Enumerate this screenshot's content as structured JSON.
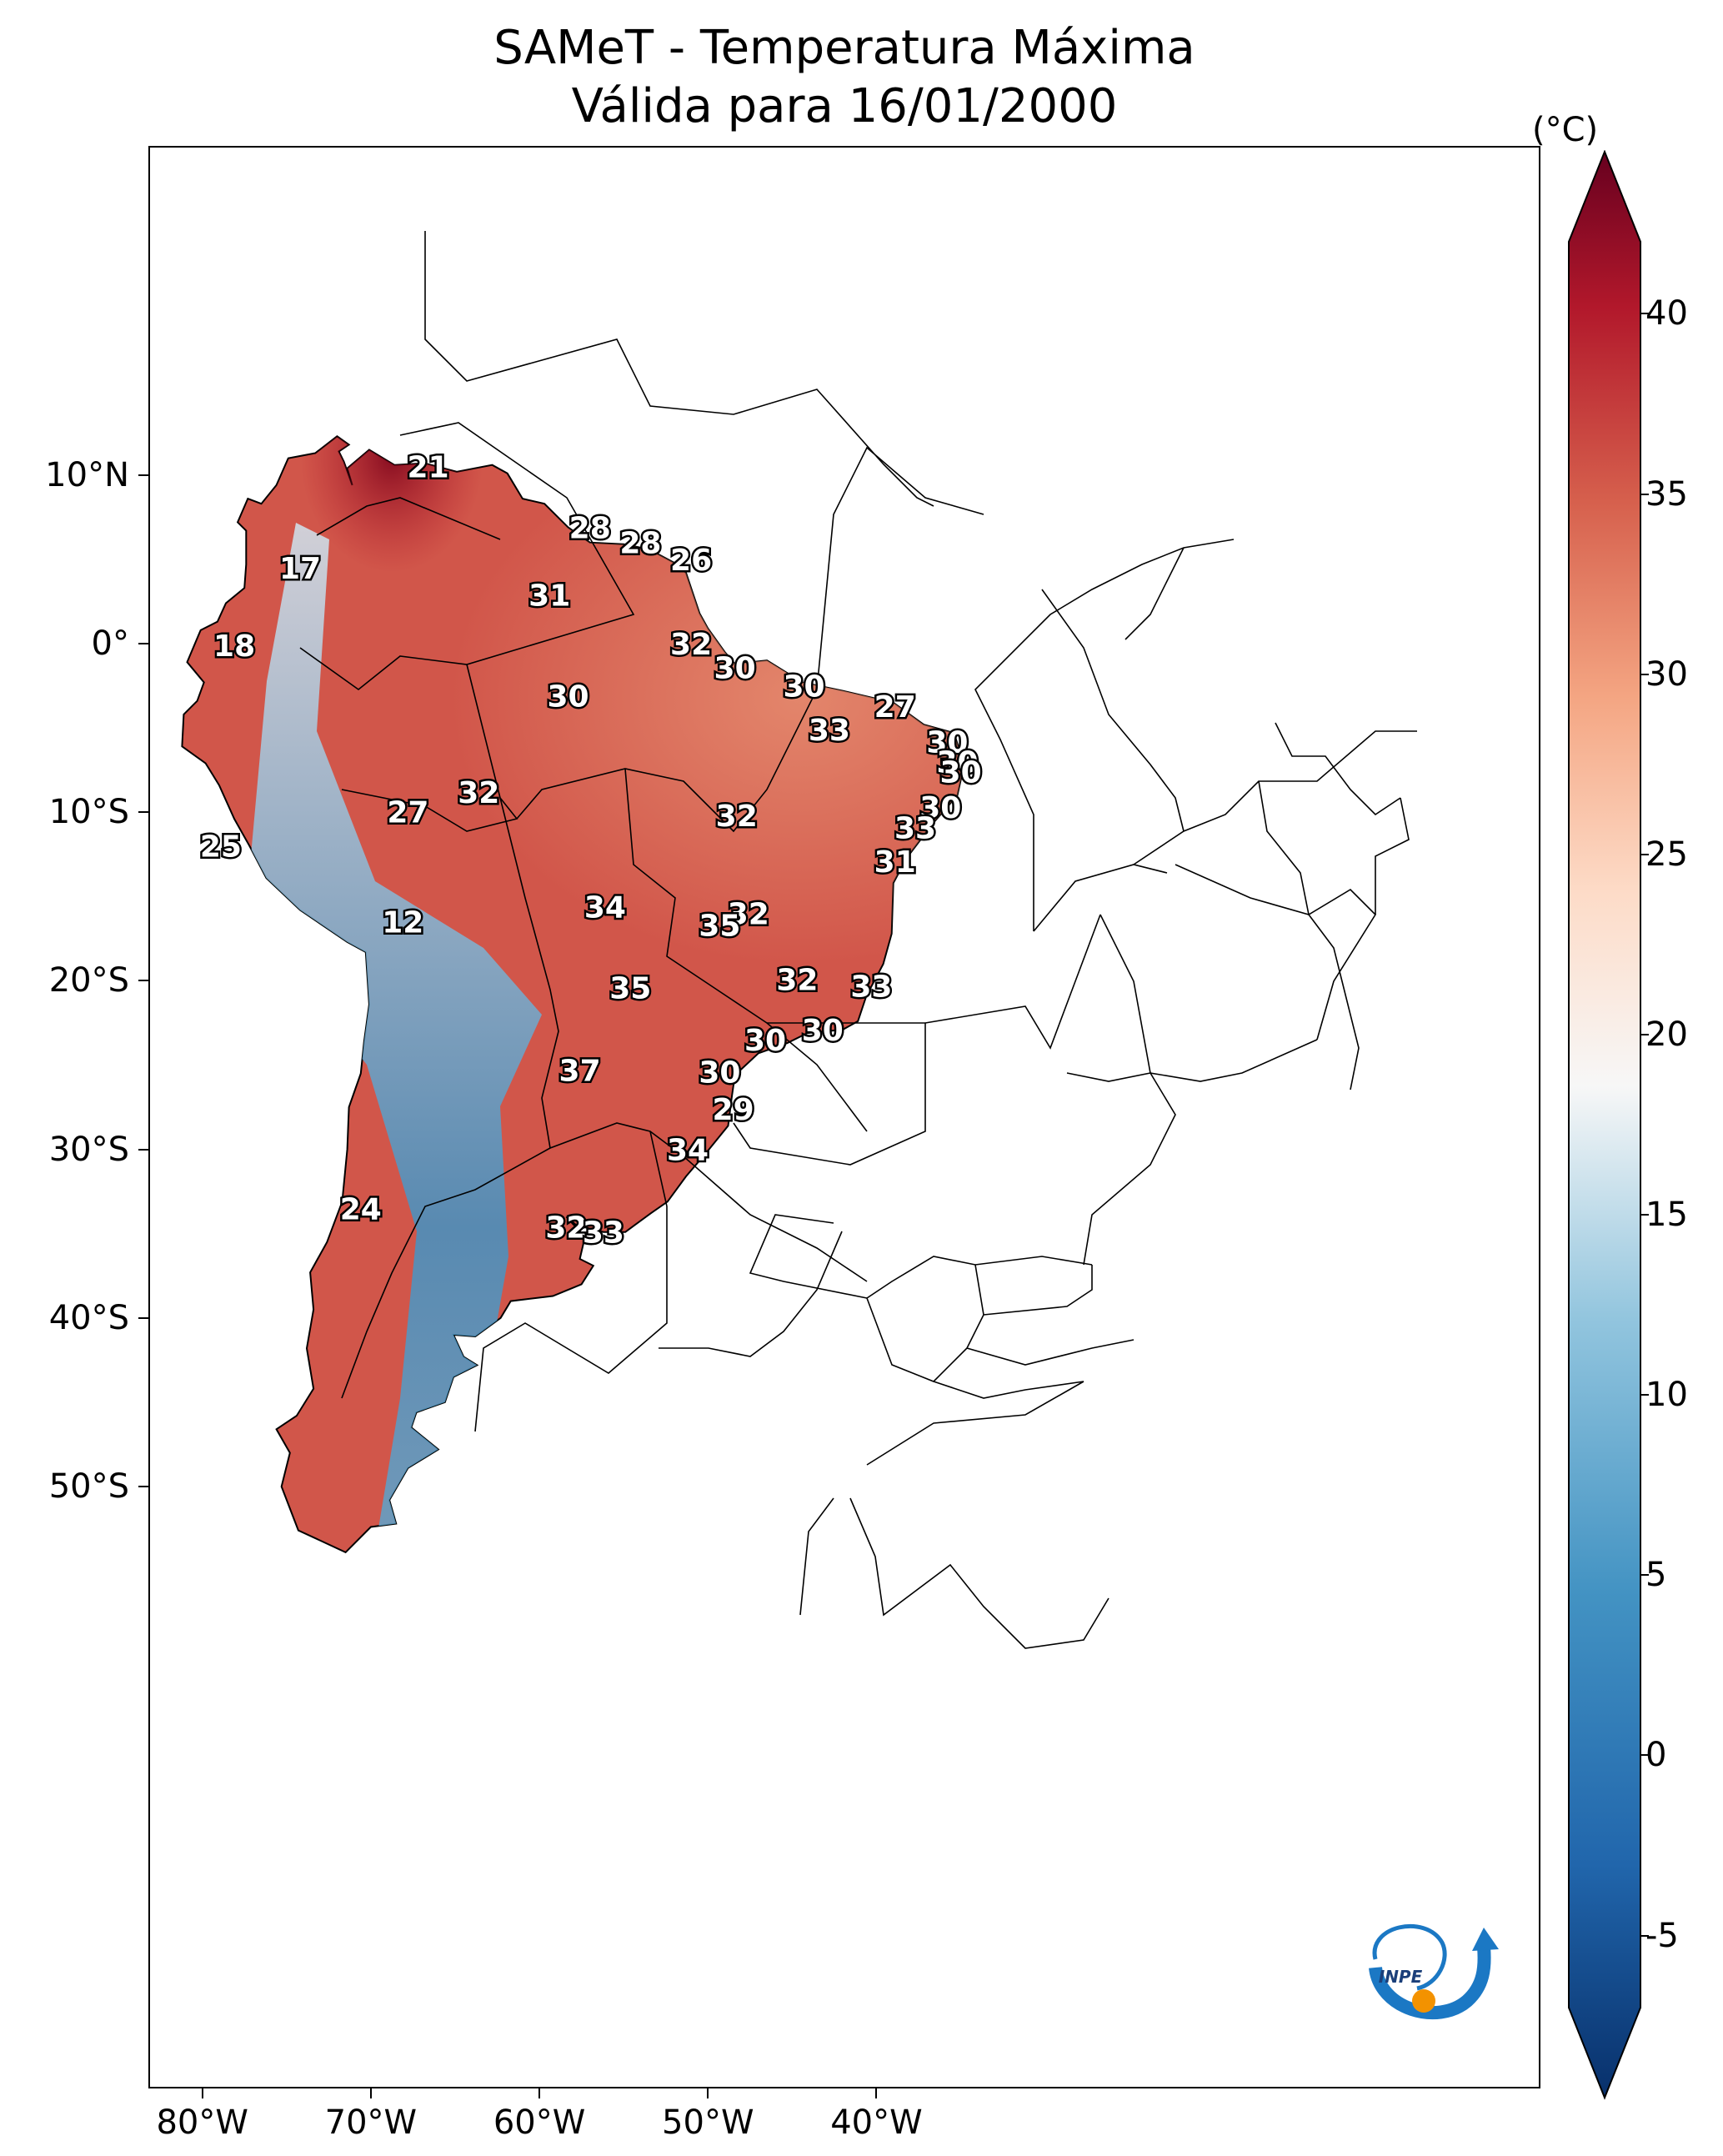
{
  "title": {
    "line1": "SAMeT - Temperatura Máxima",
    "line2": "Válida para 16/01/2000"
  },
  "axes": {
    "lat_labels": [
      "10°N",
      "0°",
      "10°S",
      "20°S",
      "30°S",
      "40°S",
      "50°S"
    ],
    "lon_labels": [
      "80°W",
      "70°W",
      "60°W",
      "50°W",
      "40°W"
    ]
  },
  "colorbar": {
    "unit": "(°C)",
    "min": -7,
    "max": 42,
    "tick_labels": [
      "40",
      "35",
      "30",
      "25",
      "20",
      "15",
      "10",
      "5",
      "0",
      "-5"
    ],
    "colors": {
      "c_neg5": "#08306b",
      "c_0": "#2166ac",
      "c_5": "#4393c3",
      "c_10": "#92c5de",
      "c_15": "#f7f7f7",
      "c_20": "#fddbc7",
      "c_25": "#f4a582",
      "c_30": "#d6604d",
      "c_35": "#b2182b",
      "c_40": "#67001f"
    }
  },
  "logo": {
    "text": "INPE"
  },
  "station_values": [
    {
      "lon": -66.6,
      "lat": 10.5,
      "label": "21"
    },
    {
      "lon": -74.2,
      "lat": 4.5,
      "label": "17"
    },
    {
      "lon": -78.1,
      "lat": -0.1,
      "label": "18"
    },
    {
      "lon": -57.0,
      "lat": 6.9,
      "label": "28"
    },
    {
      "lon": -54.0,
      "lat": 6.0,
      "label": "28"
    },
    {
      "lon": -51.0,
      "lat": 5.0,
      "label": "26"
    },
    {
      "lon": -59.4,
      "lat": 2.9,
      "label": "31"
    },
    {
      "lon": -51.0,
      "lat": 0.0,
      "label": "32"
    },
    {
      "lon": -48.4,
      "lat": -1.4,
      "label": "30"
    },
    {
      "lon": -44.3,
      "lat": -2.5,
      "label": "30"
    },
    {
      "lon": -38.9,
      "lat": -3.7,
      "label": "27"
    },
    {
      "lon": -58.3,
      "lat": -3.1,
      "label": "30"
    },
    {
      "lon": -42.8,
      "lat": -5.1,
      "label": "33"
    },
    {
      "lon": -35.8,
      "lat": -5.8,
      "label": "30"
    },
    {
      "lon": -35.2,
      "lat": -7.0,
      "label": "30"
    },
    {
      "lon": -35.0,
      "lat": -7.6,
      "label": "30"
    },
    {
      "lon": -36.2,
      "lat": -9.7,
      "label": "30"
    },
    {
      "lon": -37.7,
      "lat": -10.9,
      "label": "33"
    },
    {
      "lon": -63.6,
      "lat": -8.8,
      "label": "32"
    },
    {
      "lon": -67.8,
      "lat": -9.97,
      "label": "27"
    },
    {
      "lon": -48.3,
      "lat": -10.2,
      "label": "32"
    },
    {
      "lon": -38.9,
      "lat": -12.9,
      "label": "31"
    },
    {
      "lon": -78.9,
      "lat": -12.0,
      "label": "25"
    },
    {
      "lon": -68.1,
      "lat": -16.5,
      "label": "12"
    },
    {
      "lon": -56.1,
      "lat": -15.6,
      "label": "34"
    },
    {
      "lon": -47.6,
      "lat": -16.0,
      "label": "32"
    },
    {
      "lon": -49.3,
      "lat": -16.7,
      "label": "35"
    },
    {
      "lon": -54.6,
      "lat": -20.4,
      "label": "35"
    },
    {
      "lon": -44.7,
      "lat": -19.9,
      "label": "32"
    },
    {
      "lon": -40.3,
      "lat": -20.3,
      "label": "33"
    },
    {
      "lon": -43.2,
      "lat": -22.9,
      "label": "30"
    },
    {
      "lon": -46.6,
      "lat": -23.5,
      "label": "30"
    },
    {
      "lon": -57.6,
      "lat": -25.3,
      "label": "37"
    },
    {
      "lon": -49.3,
      "lat": -25.4,
      "label": "30"
    },
    {
      "lon": -48.5,
      "lat": -27.6,
      "label": "29"
    },
    {
      "lon": -51.2,
      "lat": -30.0,
      "label": "34"
    },
    {
      "lon": -70.6,
      "lat": -33.5,
      "label": "24"
    },
    {
      "lon": -58.4,
      "lat": -34.6,
      "label": "32"
    },
    {
      "lon": -56.2,
      "lat": -34.9,
      "label": "33"
    }
  ]
}
